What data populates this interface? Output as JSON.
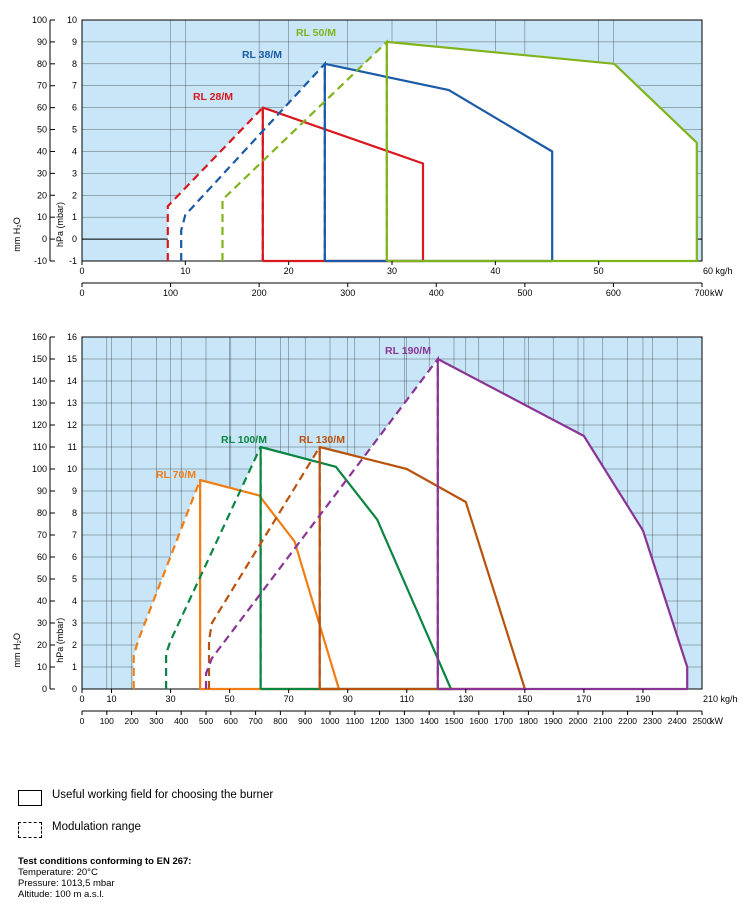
{
  "chart_data": [
    {
      "type": "line",
      "y_left_label": "mm H₂O",
      "y_right_label": "hPa (mbar)",
      "y_mm_ticks": [
        "-10",
        "0",
        "10",
        "20",
        "30",
        "40",
        "50",
        "60",
        "70",
        "80",
        "90",
        "100"
      ],
      "y_hpa_ticks": [
        "-1",
        "0",
        "1",
        "2",
        "3",
        "4",
        "5",
        "6",
        "7",
        "8",
        "9",
        "10"
      ],
      "ylim_hpa": [
        -1,
        10
      ],
      "x_kg_unit": "60 kg/h",
      "x_kg_ticks": [
        "0",
        "10",
        "20",
        "30",
        "40",
        "50"
      ],
      "xlim_kg": [
        0,
        60
      ],
      "x_kw_unit": "kW",
      "x_kw_ticks": [
        "0",
        "100",
        "200",
        "300",
        "400",
        "500",
        "600",
        "700"
      ],
      "xlim_kw": [
        0,
        700
      ],
      "series": [
        {
          "name": "RL 28/M",
          "color": "#d7191f",
          "modulation_kg": [
            [
              8.3,
              -1
            ],
            [
              8.3,
              0.65
            ],
            [
              8.3,
              1.5
            ],
            [
              17.5,
              6
            ],
            [
              17.5,
              -1
            ]
          ],
          "working_kg": [
            [
              17.5,
              -1
            ],
            [
              17.5,
              6
            ],
            [
              33,
              3.45
            ],
            [
              33,
              -1
            ],
            [
              17.5,
              -1
            ]
          ]
        },
        {
          "name": "RL 38/M",
          "color": "#1a5aa6",
          "modulation_kg": [
            [
              9.6,
              -1
            ],
            [
              9.6,
              0.4
            ],
            [
              10,
              1.1
            ],
            [
              23.5,
              8
            ],
            [
              23.5,
              -1
            ]
          ],
          "working_kg": [
            [
              23.5,
              -1
            ],
            [
              23.5,
              8
            ],
            [
              35.5,
              6.8
            ],
            [
              45.5,
              4
            ],
            [
              45.5,
              -1
            ],
            [
              23.5,
              -1
            ]
          ]
        },
        {
          "name": "RL 50/M",
          "color": "#80b31c",
          "modulation_kg": [
            [
              13.6,
              -1
            ],
            [
              13.6,
              1.8
            ],
            [
              29.5,
              9
            ],
            [
              29.5,
              -1
            ]
          ],
          "working_kg": [
            [
              29.5,
              -1
            ],
            [
              29.5,
              9
            ],
            [
              51.5,
              8
            ],
            [
              59.5,
              4.4
            ],
            [
              59.5,
              -1
            ],
            [
              29.5,
              -1
            ]
          ]
        }
      ]
    },
    {
      "type": "line",
      "y_left_label": "mm H₂O",
      "y_right_label": "hPa (mbar)",
      "y_mm_ticks": [
        "0",
        "10",
        "20",
        "30",
        "40",
        "50",
        "60",
        "70",
        "80",
        "90",
        "100",
        "110",
        "120",
        "130",
        "140",
        "150",
        "160"
      ],
      "y_hpa_ticks": [
        "0",
        "1",
        "2",
        "3",
        "4",
        "5",
        "6",
        "7",
        "8",
        "9",
        "10",
        "11",
        "12",
        "13",
        "14",
        "15",
        "16"
      ],
      "ylim_hpa": [
        0,
        16
      ],
      "x_kg_unit": "210 kg/h",
      "x_kg_ticks": [
        "0",
        "10",
        "30",
        "50",
        "70",
        "90",
        "110",
        "130",
        "150",
        "170",
        "190"
      ],
      "xlim_kg": [
        0,
        210
      ],
      "x_kw_unit": "kW",
      "x_kw_ticks": [
        "0",
        "100",
        "200",
        "300",
        "400",
        "500",
        "600",
        "700",
        "800",
        "900",
        "1000",
        "1100",
        "1200",
        "1300",
        "1400",
        "1500",
        "1600",
        "1700",
        "1800",
        "1900",
        "2000",
        "2100",
        "2200",
        "2300",
        "2400",
        "2500"
      ],
      "xlim_kw": [
        0,
        2500
      ],
      "series": [
        {
          "name": "RL 70/M",
          "color": "#f07d15",
          "modulation_kg": [
            [
              17.5,
              0
            ],
            [
              17.5,
              1.5
            ],
            [
              19,
              2.2
            ],
            [
              40,
              9.5
            ],
            [
              40,
              0
            ]
          ],
          "working_kg": [
            [
              40,
              0
            ],
            [
              40,
              9.5
            ],
            [
              60,
              8.8
            ],
            [
              72,
              6.7
            ],
            [
              87,
              0
            ],
            [
              40,
              0
            ]
          ]
        },
        {
          "name": "RL 100/M",
          "color": "#0a8542",
          "modulation_kg": [
            [
              28.5,
              0
            ],
            [
              28.5,
              1.6
            ],
            [
              30,
              2.2
            ],
            [
              60.5,
              11
            ],
            [
              60.5,
              0
            ]
          ],
          "working_kg": [
            [
              60.5,
              0
            ],
            [
              60.5,
              11
            ],
            [
              86,
              10.1
            ],
            [
              100,
              7.7
            ],
            [
              125,
              0
            ],
            [
              60.5,
              0
            ]
          ]
        },
        {
          "name": "RL 130/M",
          "color": "#b8530f",
          "modulation_kg": [
            [
              43,
              0
            ],
            [
              43,
              2.2
            ],
            [
              44,
              3
            ],
            [
              80.5,
              11
            ],
            [
              80.5,
              0
            ]
          ],
          "working_kg": [
            [
              80.5,
              0
            ],
            [
              80.5,
              11
            ],
            [
              110,
              10
            ],
            [
              130,
              8.5
            ],
            [
              150,
              0
            ],
            [
              80.5,
              0
            ]
          ]
        },
        {
          "name": "RL 190/M",
          "color": "#8a3595",
          "modulation_kg": [
            [
              42,
              0
            ],
            [
              42,
              0.7
            ],
            [
              44,
              1.4
            ],
            [
              120.5,
              15
            ],
            [
              120.5,
              0
            ]
          ],
          "working_kg": [
            [
              120.5,
              0
            ],
            [
              120.5,
              15
            ],
            [
              170,
              11.5
            ],
            [
              190,
              7.2
            ],
            [
              205,
              1
            ],
            [
              205,
              0
            ],
            [
              120.5,
              0
            ]
          ]
        }
      ]
    }
  ],
  "legend": {
    "working": "Useful working field for choosing the burner",
    "modulation": "Modulation range"
  },
  "conditions": {
    "title": "Test conditions conforming to EN 267:",
    "temperature": "Temperature: 20°C",
    "pressure": "Pressure: 1013,5 mbar",
    "altitude": "Altitude: 100 m a.s.l."
  }
}
